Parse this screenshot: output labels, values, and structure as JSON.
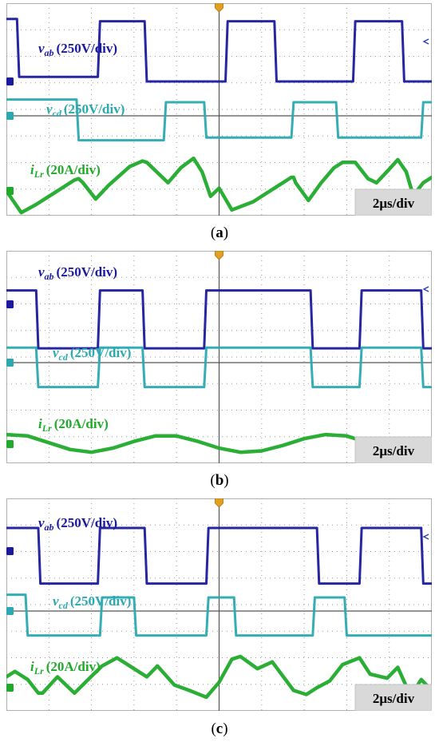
{
  "figure": {
    "panels": [
      {
        "caption": "(a)",
        "caption_letter": "a",
        "timescale": "2μs/div"
      },
      {
        "caption": "(b)",
        "caption_letter": "b",
        "timescale": "2μs/div"
      },
      {
        "caption": "(c)",
        "caption_letter": "c",
        "timescale": "2μs/div"
      }
    ]
  },
  "colors": {
    "vab": "#1a1a9e",
    "vcd": "#2aa9b0",
    "iLr": "#1faa2a",
    "grid": "#9a9a9a",
    "timescale_bg": "#d9d9d9"
  },
  "chart_data": [
    {
      "type": "line",
      "title": "",
      "timescale": "2μs/div",
      "x_divisions": 10,
      "y_divisions": 8,
      "grid": true,
      "series": [
        {
          "name": "vab",
          "symbol": "v",
          "subscript": "ab",
          "scale": "(250V/div)",
          "x": [
            0.0,
            0.25,
            0.3,
            2.15,
            2.2,
            3.25,
            3.3,
            5.15,
            5.2,
            6.3,
            6.35,
            8.15,
            8.2,
            9.3,
            9.35,
            10.0
          ],
          "y": [
            2.7,
            2.7,
            0.2,
            0.2,
            2.6,
            2.6,
            0.0,
            0.0,
            2.6,
            2.6,
            0.0,
            0.0,
            2.6,
            2.6,
            0.0,
            0.0
          ]
        },
        {
          "name": "vcd",
          "symbol": "v",
          "subscript": "cd",
          "scale": "(250V/div)",
          "x": [
            0.0,
            1.65,
            1.7,
            3.7,
            3.75,
            4.65,
            4.7,
            6.7,
            6.75,
            7.75,
            7.8,
            9.75,
            9.8,
            10.0
          ],
          "y": [
            0.6,
            0.6,
            -0.9,
            -0.9,
            0.5,
            0.5,
            -0.8,
            -0.8,
            0.5,
            0.5,
            -0.8,
            -0.8,
            0.5,
            0.5
          ]
        },
        {
          "name": "iLr",
          "symbol": "i",
          "subscript": "Lr",
          "scale": "(20A/div)",
          "x": [
            0.0,
            0.35,
            0.7,
            1.0,
            1.3,
            1.6,
            1.7,
            1.8,
            2.1,
            2.4,
            2.9,
            3.2,
            3.3,
            3.6,
            3.8,
            4.1,
            4.4,
            4.6,
            4.8,
            5.0,
            5.3,
            5.8,
            6.1,
            6.4,
            6.7,
            6.75,
            6.8,
            7.1,
            7.4,
            7.7,
            7.9,
            8.2,
            8.5,
            8.7,
            9.0,
            9.2,
            9.4,
            9.55,
            9.6,
            9.8,
            10.0
          ],
          "y": [
            0.0,
            -0.8,
            -0.5,
            -0.2,
            0.1,
            0.4,
            0.45,
            0.3,
            -0.3,
            0.2,
            0.9,
            1.1,
            1.05,
            0.6,
            0.3,
            0.85,
            1.2,
            0.7,
            -0.2,
            0.1,
            -0.7,
            -0.4,
            -0.1,
            0.2,
            0.5,
            0.5,
            0.3,
            -0.35,
            0.3,
            0.85,
            1.05,
            1.05,
            0.45,
            0.3,
            0.8,
            1.15,
            0.7,
            -0.1,
            -0.1,
            0.3,
            0.5
          ]
        }
      ]
    },
    {
      "type": "line",
      "title": "",
      "timescale": "2μs/div",
      "x_divisions": 10,
      "y_divisions": 8,
      "grid": true,
      "series": [
        {
          "name": "vab",
          "symbol": "v",
          "subscript": "ab",
          "scale": "(250V/div)",
          "x": [
            0.0,
            0.7,
            0.75,
            2.15,
            2.2,
            3.2,
            3.25,
            4.65,
            4.7,
            5.2,
            5.25,
            7.15,
            7.2,
            8.3,
            8.35,
            9.75,
            9.8,
            10.0
          ],
          "y": [
            0.6,
            0.6,
            -1.9,
            -1.9,
            0.6,
            0.6,
            -1.9,
            -1.9,
            0.6,
            0.6,
            0.6,
            0.6,
            -1.9,
            -1.9,
            0.6,
            0.6,
            -1.9,
            -1.9
          ]
        },
        {
          "name": "vcd",
          "symbol": "v",
          "subscript": "cd",
          "scale": "(250V/div)",
          "x": [
            0.0,
            0.7,
            0.75,
            2.15,
            2.2,
            3.2,
            3.25,
            4.65,
            4.7,
            7.15,
            7.2,
            8.3,
            8.35,
            9.75,
            9.8,
            10.0
          ],
          "y": [
            0.55,
            0.55,
            -0.9,
            -0.9,
            0.55,
            0.55,
            -0.9,
            -0.9,
            0.55,
            0.55,
            -0.9,
            -0.9,
            0.55,
            0.55,
            -0.9,
            -0.9
          ]
        },
        {
          "name": "iLr",
          "symbol": "i",
          "subscript": "Lr",
          "scale": "(20A/div)",
          "x": [
            0.0,
            0.5,
            1.0,
            1.5,
            2.0,
            2.5,
            3.0,
            3.5,
            4.0,
            4.5,
            5.0,
            5.5,
            6.0,
            6.5,
            7.0,
            7.5,
            8.0,
            8.5,
            9.0,
            9.5,
            10.0
          ],
          "y": [
            0.35,
            0.3,
            0.05,
            -0.2,
            -0.3,
            -0.15,
            0.1,
            0.3,
            0.3,
            0.1,
            -0.15,
            -0.3,
            -0.25,
            -0.05,
            0.2,
            0.35,
            0.3,
            0.05,
            -0.2,
            -0.3,
            -0.2
          ]
        }
      ]
    },
    {
      "type": "line",
      "title": "",
      "timescale": "2μs/div",
      "x_divisions": 10,
      "y_divisions": 8,
      "grid": true,
      "series": [
        {
          "name": "vab",
          "symbol": "v",
          "subscript": "ab",
          "scale": "(250V/div)",
          "x": [
            0.0,
            0.75,
            0.8,
            2.15,
            2.2,
            3.25,
            3.3,
            4.7,
            4.75,
            5.3,
            5.35,
            7.3,
            7.35,
            8.3,
            8.35,
            9.75,
            9.8,
            10.0
          ],
          "y": [
            1.0,
            1.0,
            -1.4,
            -1.4,
            1.0,
            1.0,
            -1.4,
            -1.4,
            1.0,
            1.0,
            1.0,
            1.0,
            -1.4,
            -1.4,
            1.0,
            1.0,
            -1.4,
            -1.4
          ]
        },
        {
          "name": "vcd",
          "symbol": "v",
          "subscript": "cd",
          "scale": "(250V/div)",
          "x": [
            0.0,
            0.45,
            0.5,
            2.2,
            2.25,
            3.0,
            3.05,
            4.7,
            4.75,
            5.35,
            5.4,
            7.2,
            7.25,
            7.95,
            8.0,
            9.75,
            9.8,
            10.0
          ],
          "y": [
            0.6,
            0.6,
            -0.9,
            -0.9,
            0.5,
            0.5,
            -0.9,
            -0.9,
            0.5,
            0.5,
            -0.9,
            -0.9,
            0.5,
            0.5,
            -0.9,
            -0.9,
            -0.9,
            -0.9
          ]
        },
        {
          "name": "iLr",
          "symbol": "i",
          "subscript": "Lr",
          "scale": "(20A/div)",
          "x": [
            0.0,
            0.2,
            0.5,
            0.75,
            0.85,
            1.2,
            1.6,
            2.05,
            2.25,
            2.6,
            2.9,
            3.3,
            3.55,
            3.95,
            4.3,
            4.7,
            5.0,
            5.3,
            5.5,
            5.9,
            6.25,
            6.75,
            7.05,
            7.3,
            7.6,
            7.9,
            8.3,
            8.55,
            8.95,
            9.2,
            9.5,
            9.75,
            10.0
          ],
          "y": [
            0.4,
            0.6,
            0.3,
            -0.2,
            -0.2,
            0.4,
            -0.2,
            0.5,
            0.8,
            1.1,
            0.8,
            0.4,
            0.8,
            0.1,
            -0.1,
            -0.35,
            0.2,
            1.05,
            1.15,
            0.7,
            0.95,
            -0.1,
            -0.25,
            0.0,
            0.25,
            0.85,
            1.1,
            0.5,
            0.35,
            0.75,
            -0.3,
            0.3,
            -0.1
          ]
        }
      ]
    }
  ]
}
